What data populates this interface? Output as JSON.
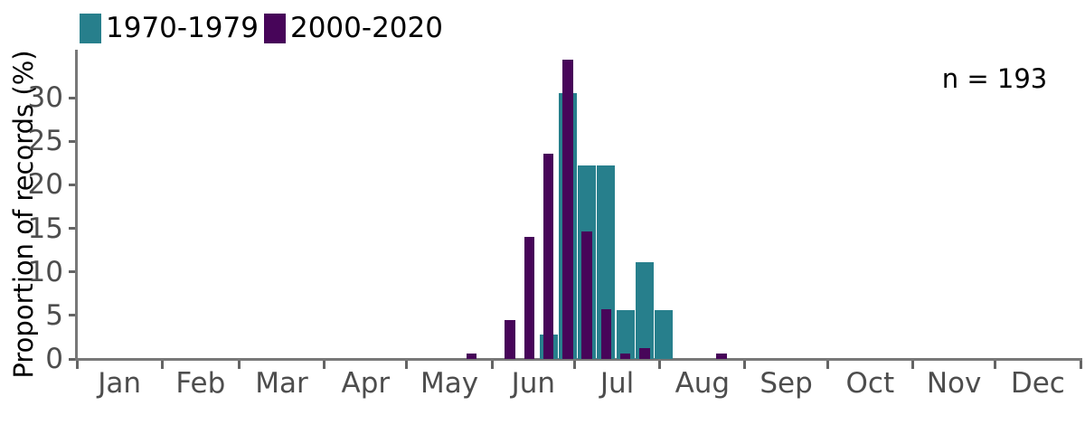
{
  "chart_data": {
    "type": "bar",
    "subtype": "overlaid-histogram",
    "title": "",
    "xlabel": "",
    "ylabel": "Proportion of records (%)",
    "annotation": "n = 193",
    "x_tick_labels": [
      "Jan",
      "Feb",
      "Mar",
      "Apr",
      "May",
      "Jun",
      "Jul",
      "Aug",
      "Sep",
      "Oct",
      "Nov",
      "Dec"
    ],
    "y_ticks": [
      0,
      5,
      10,
      15,
      20,
      25,
      30
    ],
    "ylim": [
      0,
      36
    ],
    "x_axis_type": "date axis Jan 1 - Dec 31, weekly bins, positions given as day-of-year",
    "grid": false,
    "legend_position": "top-left",
    "series": [
      {
        "name": "1970-1979",
        "color": "#277f8c",
        "bin_width_days": 7,
        "points": [
          {
            "day": 171.5,
            "approx_date": "Jun 21",
            "value": 2.78
          },
          {
            "day": 178.5,
            "approx_date": "Jun 28",
            "value": 30.56
          },
          {
            "day": 185.5,
            "approx_date": "Jul 5",
            "value": 22.22
          },
          {
            "day": 192.5,
            "approx_date": "Jul 12",
            "value": 22.22
          },
          {
            "day": 199.5,
            "approx_date": "Jul 19",
            "value": 5.56
          },
          {
            "day": 206.5,
            "approx_date": "Jul 26",
            "value": 11.11
          },
          {
            "day": 213.5,
            "approx_date": "Aug 2",
            "value": 5.56
          }
        ]
      },
      {
        "name": "2000-2020",
        "color": "#470559",
        "bin_width_days": 4,
        "points": [
          {
            "day": 143.5,
            "approx_date": "May 24",
            "value": 0.64
          },
          {
            "day": 157.5,
            "approx_date": "Jun 7",
            "value": 4.46
          },
          {
            "day": 164.5,
            "approx_date": "Jun 14",
            "value": 14.01
          },
          {
            "day": 171.5,
            "approx_date": "Jun 21",
            "value": 23.57
          },
          {
            "day": 178.5,
            "approx_date": "Jun 28",
            "value": 34.39
          },
          {
            "day": 185.5,
            "approx_date": "Jul 5",
            "value": 14.65
          },
          {
            "day": 192.5,
            "approx_date": "Jul 12",
            "value": 5.73
          },
          {
            "day": 199.5,
            "approx_date": "Jul 19",
            "value": 0.64
          },
          {
            "day": 206.5,
            "approx_date": "Jul 26",
            "value": 1.27
          },
          {
            "day": 234.5,
            "approx_date": "Aug 23",
            "value": 0.64
          }
        ]
      }
    ],
    "colors": {
      "series_1970_1979": "#277f8c",
      "series_2000_2020": "#470559",
      "axis_line": "#787878",
      "tick_mark": "#646464",
      "tick_label": "#4d4d4d",
      "text": "#000000"
    }
  }
}
